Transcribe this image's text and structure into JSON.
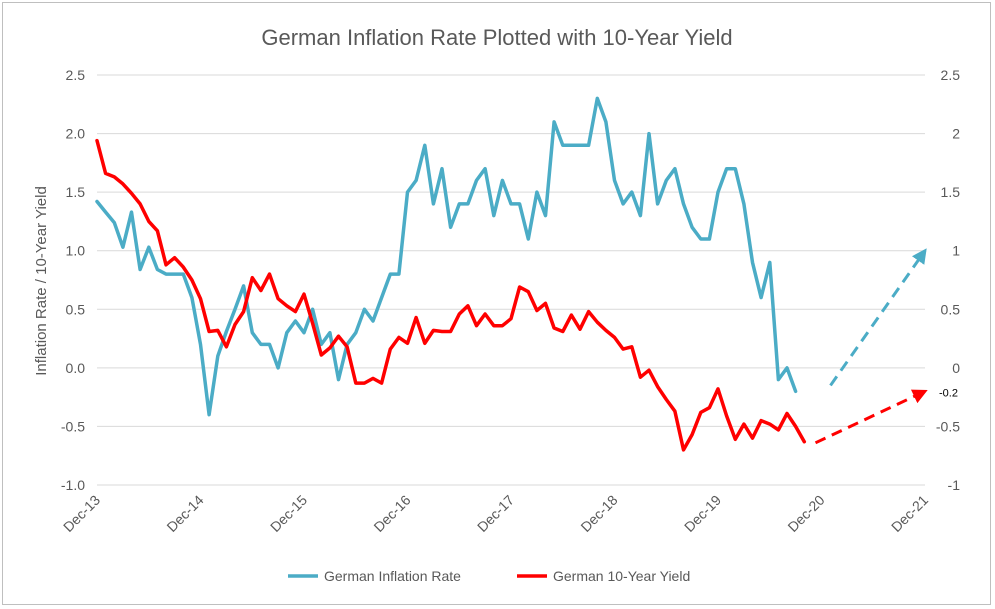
{
  "chart_data": {
    "type": "line",
    "title": "German Inflation Rate Plotted with 10-Year Yield",
    "ylabel": "Inflation Rate / 10-Year Yield",
    "ylim": [
      -1.0,
      2.5
    ],
    "y_ticks_left": [
      "2.5",
      "2.0",
      "1.5",
      "1.0",
      "0.5",
      "0.0",
      "-0.5",
      "-1.0"
    ],
    "y_ticks_right": [
      "2.5",
      "2",
      "1.5",
      "1",
      "0.5",
      "0",
      "-0.5",
      "-1"
    ],
    "y_tick_values": [
      2.5,
      2.0,
      1.5,
      1.0,
      0.5,
      0.0,
      -0.5,
      -1.0
    ],
    "x_ticks": [
      "Dec-13",
      "Dec-14",
      "Dec-15",
      "Dec-16",
      "Dec-17",
      "Dec-18",
      "Dec-19",
      "Dec-20",
      "Dec-21"
    ],
    "x_start": "Dec-13",
    "grid": true,
    "legend_position": "bottom",
    "series": [
      {
        "name": "German Inflation Rate",
        "color": "#4BACC6",
        "values": [
          1.42,
          1.33,
          1.24,
          1.03,
          1.33,
          0.84,
          1.03,
          0.84,
          0.8,
          0.8,
          0.8,
          0.6,
          0.2,
          -0.4,
          0.1,
          0.31,
          0.5,
          0.7,
          0.3,
          0.2,
          0.2,
          0.0,
          0.3,
          0.4,
          0.3,
          0.5,
          0.2,
          0.3,
          -0.1,
          0.2,
          0.3,
          0.5,
          0.4,
          0.6,
          0.8,
          0.8,
          1.5,
          1.6,
          1.9,
          1.4,
          1.7,
          1.2,
          1.4,
          1.4,
          1.6,
          1.7,
          1.3,
          1.6,
          1.4,
          1.4,
          1.1,
          1.5,
          1.3,
          2.1,
          1.9,
          1.9,
          1.9,
          1.9,
          2.3,
          2.1,
          1.6,
          1.4,
          1.5,
          1.3,
          2.0,
          1.4,
          1.6,
          1.7,
          1.4,
          1.2,
          1.1,
          1.1,
          1.5,
          1.7,
          1.7,
          1.4,
          0.9,
          0.6,
          0.9,
          -0.1,
          0.0,
          -0.2
        ]
      },
      {
        "name": "German 10-Year Yield",
        "color": "#FF0000",
        "values": [
          1.94,
          1.66,
          1.63,
          1.57,
          1.49,
          1.4,
          1.25,
          1.17,
          0.88,
          0.94,
          0.86,
          0.75,
          0.59,
          0.31,
          0.32,
          0.18,
          0.37,
          0.48,
          0.77,
          0.66,
          0.8,
          0.59,
          0.53,
          0.48,
          0.63,
          0.38,
          0.11,
          0.17,
          0.27,
          0.18,
          -0.13,
          -0.13,
          -0.09,
          -0.13,
          0.16,
          0.26,
          0.21,
          0.43,
          0.21,
          0.32,
          0.31,
          0.31,
          0.46,
          0.53,
          0.36,
          0.46,
          0.36,
          0.36,
          0.42,
          0.69,
          0.65,
          0.49,
          0.55,
          0.34,
          0.31,
          0.45,
          0.33,
          0.48,
          0.39,
          0.32,
          0.26,
          0.16,
          0.18,
          -0.08,
          -0.02,
          -0.16,
          -0.27,
          -0.37,
          -0.7,
          -0.57,
          -0.38,
          -0.34,
          -0.18,
          -0.41,
          -0.61,
          -0.48,
          -0.6,
          -0.45,
          -0.48,
          -0.53,
          -0.39,
          -0.5,
          -0.63
        ]
      }
    ],
    "projections": [
      {
        "series": "German Inflation Rate",
        "color": "#4BACC6",
        "from": {
          "x": "Dec-20",
          "y": -0.15
        },
        "to": {
          "x": "Dec-21",
          "y": 1.0
        }
      },
      {
        "series": "German 10-Year Yield",
        "color": "#FF0000",
        "from": {
          "x": "Dec-20",
          "y": -0.64
        },
        "to": {
          "x": "Dec-21",
          "y": -0.2
        },
        "label": "-0.2"
      }
    ]
  }
}
